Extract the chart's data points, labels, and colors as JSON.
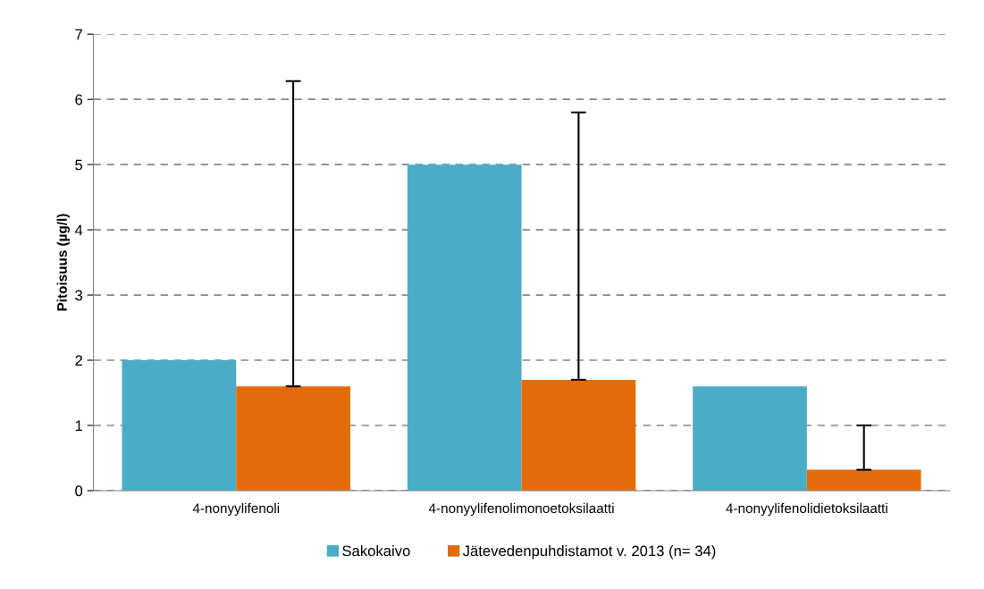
{
  "chart_data": {
    "type": "bar",
    "ylabel": "Pitoisuus (µg/l)",
    "categories": [
      "4-nonyylifenoli",
      "4-nonyylifenolimonoetoksilaatti",
      "4-nonyylifenolidietoksilaatti"
    ],
    "series": [
      {
        "name": "Sakokaivo",
        "color": "#4bacc6",
        "values": [
          2.0,
          5.0,
          1.6
        ]
      },
      {
        "name": "Jätevedenpuhdistamot v. 2013 (n= 34)",
        "color": "#e36c0a",
        "values": [
          1.6,
          1.7,
          0.32
        ],
        "errors": [
          [
            1.6,
            6.28
          ],
          [
            1.7,
            5.8
          ],
          [
            0.32,
            1.0
          ]
        ]
      }
    ],
    "ylim": [
      0,
      7
    ],
    "yticks": [
      0,
      1,
      2,
      3,
      4,
      5,
      6,
      7
    ],
    "grid": "y",
    "legend": "bottom"
  }
}
